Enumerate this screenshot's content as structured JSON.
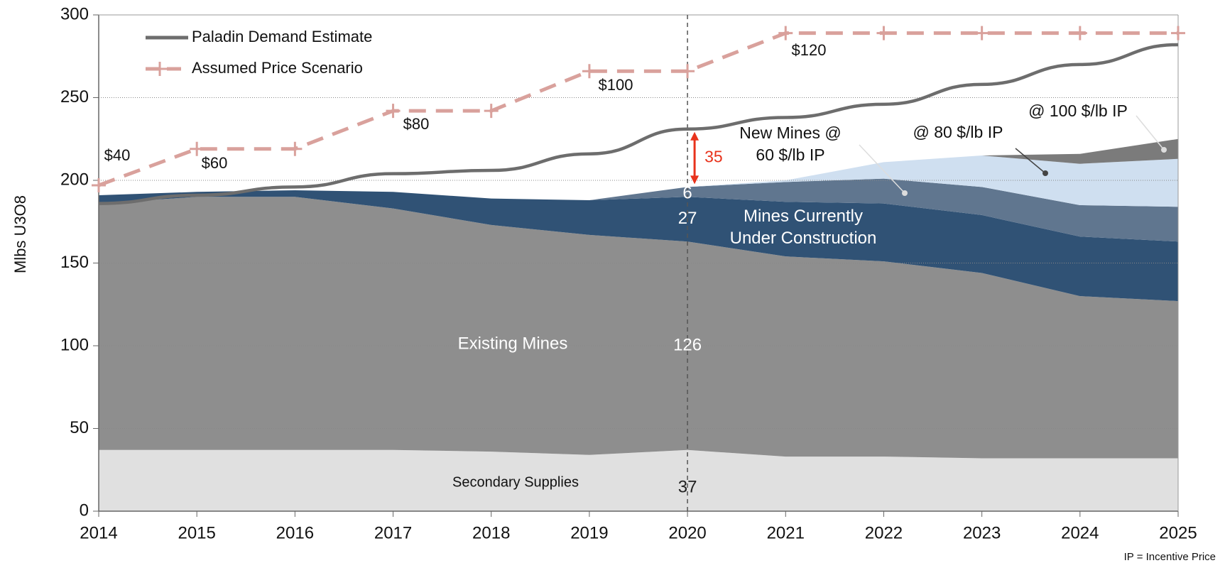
{
  "chart_data": {
    "type": "stacked_area",
    "categories": [
      "2014",
      "2015",
      "2016",
      "2017",
      "2018",
      "2019",
      "2020",
      "2021",
      "2022",
      "2023",
      "2024",
      "2025"
    ],
    "ylim": [
      0,
      300
    ],
    "yticks": [
      0,
      50,
      100,
      150,
      200,
      250,
      300
    ],
    "grid": true,
    "y_label": "Mlbs  U3O8",
    "footnote": "IP = Incentive Price",
    "marker_category": "2020",
    "series": [
      {
        "name": "Secondary Supplies",
        "color": "#e0e0e0",
        "stack": true,
        "values": [
          37,
          37,
          37,
          37,
          36,
          34,
          37,
          33,
          33,
          32,
          32,
          32
        ]
      },
      {
        "name": "Existing Mines",
        "color": "#8e8e8e",
        "stack": true,
        "values": [
          149,
          153,
          153,
          146,
          137,
          133,
          126,
          121,
          118,
          112,
          98,
          95
        ]
      },
      {
        "name": "Mines Currently\nUnder Construction",
        "color": "#305275",
        "stack": true,
        "values": [
          5,
          3,
          4,
          10,
          16,
          21,
          27,
          33,
          35,
          35,
          36,
          36
        ]
      },
      {
        "name": "New Mines @\n60 $/lb IP",
        "color": "#60768f",
        "stack": true,
        "values": [
          0,
          0,
          0,
          0,
          0,
          0,
          6,
          12,
          15,
          17,
          19,
          21
        ]
      },
      {
        "name": "@ 80 $/lb IP",
        "color": "#cfdff0",
        "stack": true,
        "values": [
          0,
          0,
          0,
          0,
          0,
          0,
          0,
          1,
          10,
          19,
          25,
          29
        ]
      },
      {
        "name": "@ 100 $/lb IP",
        "color": "#7b7b7b",
        "stack": true,
        "values": [
          0,
          0,
          0,
          0,
          0,
          0,
          0,
          0,
          0,
          0,
          6,
          12
        ]
      },
      {
        "name": "Paladin Demand Estimate",
        "color": "#6d6d6d",
        "stack": false,
        "dashed": false,
        "values": [
          186,
          191,
          196,
          204,
          206,
          216,
          231,
          238,
          246,
          258,
          270,
          282
        ]
      },
      {
        "name": "Assumed Price Scenario",
        "color": "#d9a19c",
        "stack": false,
        "dashed": true,
        "values": [
          197,
          219,
          219,
          242,
          242,
          266,
          266,
          289,
          289,
          289,
          289,
          289
        ]
      }
    ],
    "price_labels": [
      "$40",
      "$60",
      "$80",
      "$100",
      "$120"
    ],
    "gap": 35
  }
}
